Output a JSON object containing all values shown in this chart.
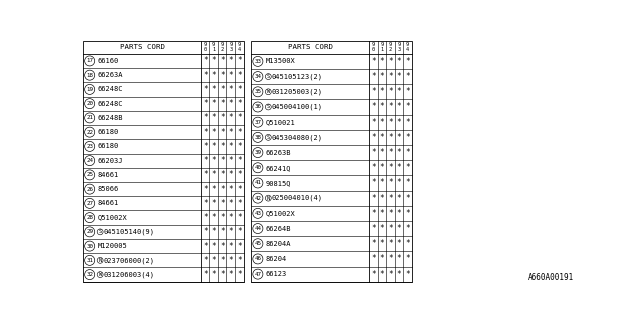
{
  "title": "A660A00191",
  "bg_color": "#ffffff",
  "col_headers": [
    "9/0",
    "9/1",
    "9/2",
    "9/3",
    "9/4"
  ],
  "left_table": {
    "header": "PARTS CORD",
    "rows": [
      {
        "num": "17",
        "part": "66160",
        "prefix": ""
      },
      {
        "num": "18",
        "part": "66263A",
        "prefix": ""
      },
      {
        "num": "19",
        "part": "66248C",
        "prefix": ""
      },
      {
        "num": "20",
        "part": "66248C",
        "prefix": ""
      },
      {
        "num": "21",
        "part": "66248B",
        "prefix": ""
      },
      {
        "num": "22",
        "part": "66180",
        "prefix": ""
      },
      {
        "num": "23",
        "part": "66180",
        "prefix": ""
      },
      {
        "num": "24",
        "part": "66203J",
        "prefix": ""
      },
      {
        "num": "25",
        "part": "84661",
        "prefix": ""
      },
      {
        "num": "26",
        "part": "85066",
        "prefix": ""
      },
      {
        "num": "27",
        "part": "84661",
        "prefix": ""
      },
      {
        "num": "28",
        "part": "Q51002X",
        "prefix": ""
      },
      {
        "num": "29",
        "part": "045105140(9)",
        "prefix": "S"
      },
      {
        "num": "30",
        "part": "M120005",
        "prefix": ""
      },
      {
        "num": "31",
        "part": "023706000(2)",
        "prefix": "N"
      },
      {
        "num": "32",
        "part": "031206003(4)",
        "prefix": "W"
      }
    ]
  },
  "right_table": {
    "header": "PARTS CORD",
    "rows": [
      {
        "num": "33",
        "part": "M13500X",
        "prefix": ""
      },
      {
        "num": "34",
        "part": "045105123(2)",
        "prefix": "S"
      },
      {
        "num": "35",
        "part": "031205003(2)",
        "prefix": "W"
      },
      {
        "num": "36",
        "part": "045004100(1)",
        "prefix": "S"
      },
      {
        "num": "37",
        "part": "Q510021",
        "prefix": ""
      },
      {
        "num": "38",
        "part": "045304080(2)",
        "prefix": "S"
      },
      {
        "num": "39",
        "part": "66263B",
        "prefix": ""
      },
      {
        "num": "40",
        "part": "66241Q",
        "prefix": ""
      },
      {
        "num": "41",
        "part": "90815Q",
        "prefix": ""
      },
      {
        "num": "42",
        "part": "025004010(4)",
        "prefix": "N"
      },
      {
        "num": "43",
        "part": "Q51002X",
        "prefix": ""
      },
      {
        "num": "44",
        "part": "66264B",
        "prefix": ""
      },
      {
        "num": "45",
        "part": "86204A",
        "prefix": ""
      },
      {
        "num": "46",
        "part": "86204",
        "prefix": ""
      },
      {
        "num": "47",
        "part": "66123",
        "prefix": ""
      }
    ]
  },
  "star": "*",
  "font_size": 5.0,
  "font_family": "monospace",
  "lw": 0.6
}
